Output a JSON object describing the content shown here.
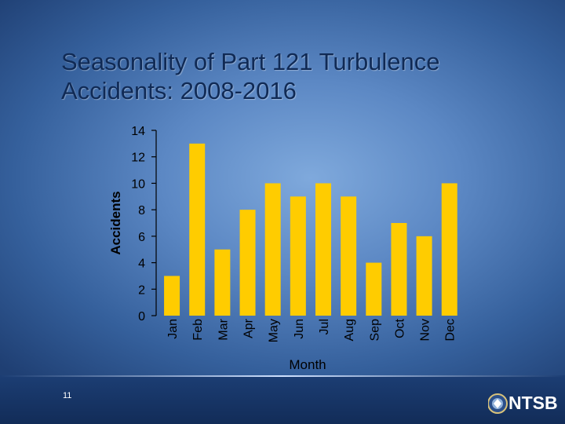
{
  "slide": {
    "title": "Seasonality of Part 121 Turbulence Accidents: 2008-2016",
    "page_number": "11",
    "logo_text": "NTSB"
  },
  "colors": {
    "bar": "#ffcc00",
    "axis": "#000000",
    "title": "#102a55"
  },
  "chart_data": {
    "type": "bar",
    "title": "",
    "xlabel": "Month",
    "ylabel": "Accidents",
    "categories": [
      "Jan",
      "Feb",
      "Mar",
      "Apr",
      "May",
      "Jun",
      "Jul",
      "Aug",
      "Sep",
      "Oct",
      "Nov",
      "Dec"
    ],
    "values": [
      3,
      13,
      5,
      8,
      10,
      9,
      10,
      9,
      4,
      7,
      6,
      10
    ],
    "ylim": [
      0,
      14
    ],
    "yticks": [
      0,
      2,
      4,
      6,
      8,
      10,
      12,
      14
    ],
    "grid": false,
    "legend": "none"
  }
}
